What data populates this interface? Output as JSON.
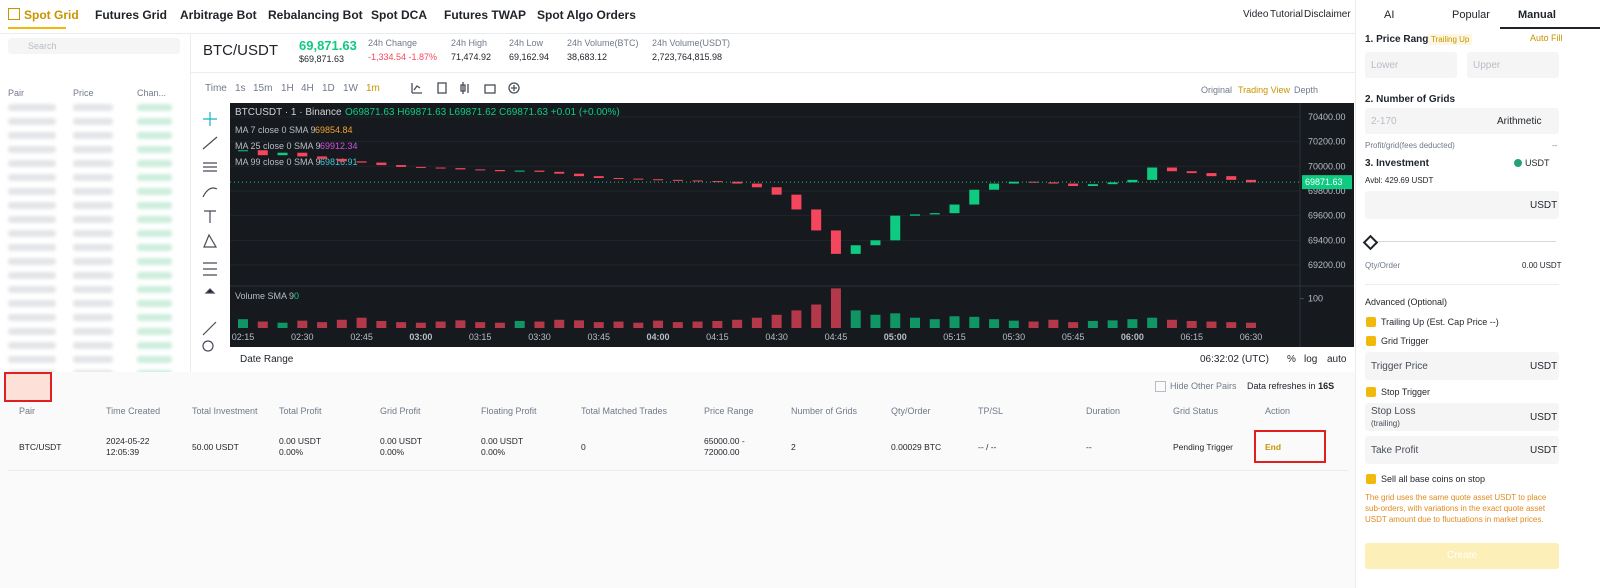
{
  "nav": {
    "tabs": [
      "Spot Grid",
      "Futures Grid",
      "Arbitrage Bot",
      "Rebalancing Bot",
      "Spot DCA",
      "Futures TWAP",
      "Spot Algo Orders"
    ],
    "links": [
      "Video",
      "Tutorial",
      "Disclaimer"
    ]
  },
  "sidebar": {
    "search": "Search",
    "columns": [
      "Pair",
      "Price",
      "Chan..."
    ]
  },
  "ticker": {
    "pair": "BTC/USDT",
    "price": "69,871.63",
    "price_usd": "$69,871.63",
    "stats": [
      {
        "label": "24h Change",
        "value": "-1,334.54 -1.87%"
      },
      {
        "label": "24h High",
        "value": "71,474.92"
      },
      {
        "label": "24h Low",
        "value": "69,162.94"
      },
      {
        "label": "24h Volume(BTC)",
        "value": "38,683.12"
      },
      {
        "label": "24h Volume(USDT)",
        "value": "2,723,764,815.98"
      }
    ]
  },
  "toolbar": {
    "intervals": [
      "Time",
      "1s",
      "15m",
      "1H",
      "4H",
      "1D",
      "1W",
      "1m"
    ],
    "views": [
      "Original",
      "Trading View",
      "Depth"
    ]
  },
  "chart_data": {
    "type": "candlestick",
    "title": "BTCUSDT · 1 · Binance",
    "ohlc": "O69871.63 H69871.63 L69871.62 C69871.63 +0.01 (+0.00%)",
    "indicators": [
      {
        "name": "MA 7 close 0 SMA 9",
        "value": 69854.84,
        "color": "#f0a030"
      },
      {
        "name": "MA 25 close 0 SMA 9",
        "value": 69912.34,
        "color": "#d050e0"
      },
      {
        "name": "MA 99 close 0 SMA 9",
        "value": 69816.91,
        "color": "#40c8d8"
      }
    ],
    "volume_label": "Volume SMA 9",
    "volume_sma": 0,
    "ylim": [
      69054,
      70513
    ],
    "yticks": [
      {
        "value": 69200,
        "label": "69200.00"
      },
      {
        "value": 69400,
        "label": "69400.00"
      },
      {
        "value": 69600,
        "label": "69600.00"
      },
      {
        "value": 69800,
        "label": "69800.00"
      },
      {
        "value": 70000,
        "label": "70000.00"
      },
      {
        "value": 70200,
        "label": "70200.00"
      },
      {
        "value": 70400,
        "label": "70400.00"
      }
    ],
    "last_price": 69871.63,
    "xticks": [
      "02:15",
      "02:30",
      "02:45",
      "03:00",
      "03:15",
      "03:30",
      "03:45",
      "04:00",
      "04:15",
      "04:30",
      "04:45",
      "05:00",
      "05:15",
      "05:30",
      "05:45",
      "06:00",
      "06:15",
      "06:30"
    ],
    "close": [
      70130,
      70090,
      70110,
      70080,
      70060,
      70040,
      70030,
      70010,
      69995,
      69990,
      69985,
      69975,
      69970,
      69960,
      69965,
      69955,
      69940,
      69920,
      69905,
      69900,
      69895,
      69890,
      69885,
      69880,
      69875,
      69860,
      69830,
      69770,
      69650,
      69480,
      69290,
      69360,
      69400,
      69600,
      69610,
      69620,
      69690,
      69810,
      69860,
      69875,
      69870,
      69860,
      69840,
      69855,
      69870,
      69890,
      69990,
      69960,
      69945,
      69920,
      69890,
      69870
    ],
    "volume": [
      30,
      22,
      18,
      25,
      20,
      28,
      35,
      24,
      20,
      18,
      22,
      26,
      20,
      18,
      24,
      22,
      28,
      26,
      20,
      22,
      18,
      25,
      20,
      22,
      24,
      28,
      35,
      45,
      60,
      80,
      135,
      60,
      45,
      50,
      35,
      30,
      40,
      38,
      30,
      25,
      22,
      28,
      20,
      24,
      26,
      30,
      35,
      28,
      24,
      22,
      20,
      18
    ],
    "volume_ylim": [
      0,
      143
    ],
    "volume_yticks": [
      100
    ],
    "up_color": "#0ecb81",
    "down_color": "#f6465d"
  },
  "bottom": {
    "date_range": "Date Range",
    "time": "06:32:02 (UTC)",
    "scale": [
      "%",
      "log",
      "auto"
    ],
    "hide_other": "Hide Other Pairs",
    "refresh": "Data refreshes in",
    "refresh_s": "16S"
  },
  "table": {
    "headers": [
      "Pair",
      "Time Created",
      "Total Investment",
      "Total Profit",
      "Grid Profit",
      "Floating Profit",
      "Total Matched Trades",
      "Price Range",
      "Number of Grids",
      "Qty/Order",
      "TP/SL",
      "Duration",
      "Grid Status",
      "Action"
    ],
    "rows": [
      [
        [
          "BTC/USDT"
        ],
        [
          "2024-05-22",
          "12:05:39"
        ],
        [
          "50.00 USDT"
        ],
        [
          "0.00 USDT",
          "0.00%"
        ],
        [
          "0.00 USDT",
          "0.00%"
        ],
        [
          "0.00 USDT",
          "0.00%"
        ],
        [
          "0"
        ],
        [
          "65000.00 -",
          "72000.00"
        ],
        [
          "2"
        ],
        [
          "0.00029 BTC"
        ],
        [
          "-- / --"
        ],
        [
          "--"
        ],
        [
          "Pending Trigger"
        ],
        [
          "End"
        ]
      ]
    ]
  },
  "panel": {
    "tabs": [
      "AI",
      "Popular",
      "Manual"
    ],
    "price_range": "1. Price Range",
    "trailing_up": "Trailing Up",
    "auto_fill": "Auto Fill",
    "lower": "Lower",
    "upper": "Upper",
    "num_grids": "2. Number of Grids",
    "grids_hint": "2-170",
    "mode": "Arithmetic",
    "profit_grid": "Profit/grid(fees deducted)",
    "profit_value": "--",
    "investment": "3. Investment",
    "coin": "USDT",
    "avbl": "Avbl: 429.69 USDT",
    "invest_unit": "USDT",
    "qty_order": "Qty/Order",
    "qty_value": "0.00 USDT",
    "advanced": "Advanced (Optional)",
    "trailing_opt": "Trailing Up (Est. Cap Price --)",
    "grid_trigger": "Grid Trigger",
    "trigger_price": "Trigger Price",
    "trigger_unit": "USDT",
    "stop_trigger": "Stop Trigger",
    "stop_loss": "Stop Loss",
    "trailing": "(trailing)",
    "stop_unit": "USDT",
    "take_profit": "Take Profit",
    "tp_unit": "USDT",
    "sell_all": "Sell all base coins on stop",
    "note": "The grid uses the same quote asset USDT to place sub-orders, with variations in the exact quote asset USDT amount due to fluctuations in market prices.",
    "create": "Create"
  }
}
